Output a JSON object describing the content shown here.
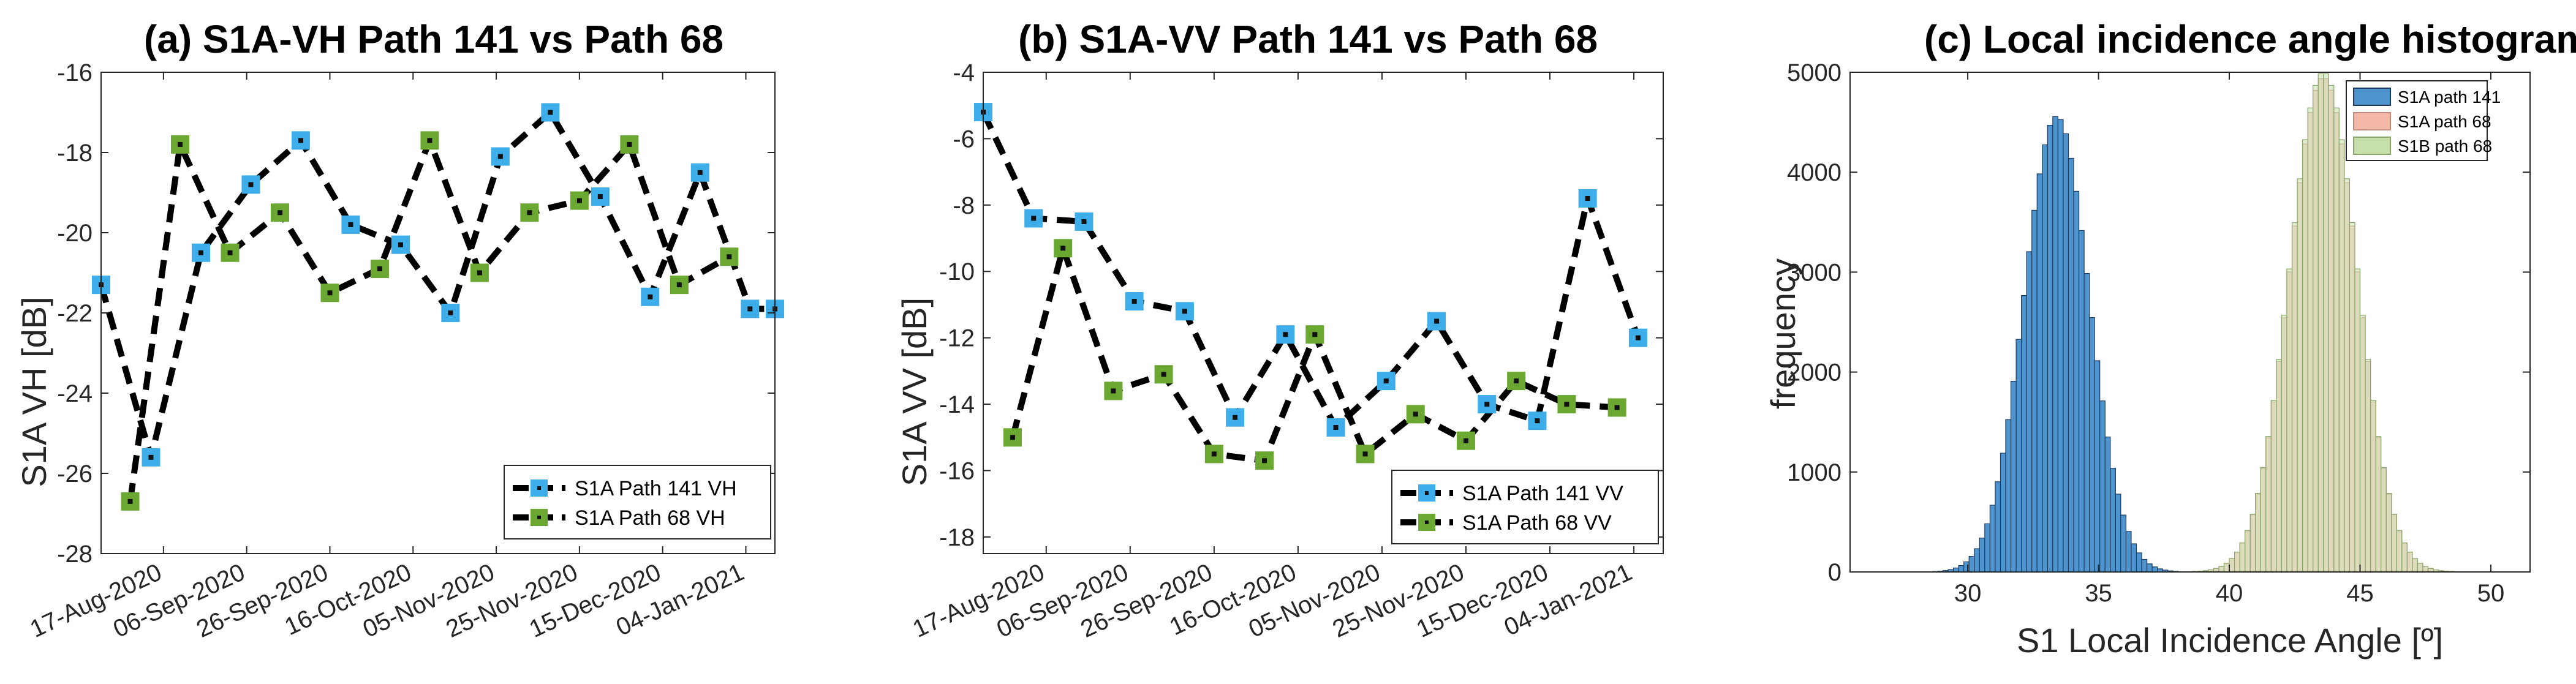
{
  "chart_data": [
    {
      "type": "line",
      "title": "(a) S1A-VH Path 141 vs Path 68",
      "xlabel": "",
      "ylabel": "S1A VH [dB]",
      "ylim": [
        -28,
        -16
      ],
      "yticks": [
        -28,
        -26,
        -24,
        -22,
        -20,
        -18,
        -16
      ],
      "ytick_labels": [
        "-28",
        "-26",
        "-24",
        "-22",
        "-20",
        "-18",
        "-16"
      ],
      "xrange": [
        "2020-08-02",
        "2021-01-11"
      ],
      "xtick_dates": [
        "2020-08-17",
        "2020-09-06",
        "2020-09-26",
        "2020-10-16",
        "2020-11-05",
        "2020-11-25",
        "2020-12-15",
        "2021-01-04"
      ],
      "xtick_labels": [
        "17-Aug-2020",
        "06-Sep-2020",
        "26-Sep-2020",
        "16-Oct-2020",
        "05-Nov-2020",
        "25-Nov-2020",
        "15-Dec-2020",
        "04-Jan-2021"
      ],
      "legend_position": "bottom-right",
      "series": [
        {
          "name": "S1A Path 141 VH",
          "color": "#3daee9",
          "x": [
            "2020-08-02",
            "2020-08-14",
            "2020-08-26",
            "2020-09-07",
            "2020-09-19",
            "2020-10-01",
            "2020-10-13",
            "2020-10-25",
            "2020-11-06",
            "2020-11-18",
            "2020-11-30",
            "2020-12-12",
            "2020-12-24",
            "2021-01-05",
            "2021-01-11"
          ],
          "values": [
            -21.3,
            -25.6,
            -20.5,
            -18.8,
            -17.7,
            -19.8,
            -20.3,
            -22.0,
            -18.1,
            -17.0,
            -19.1,
            -21.6,
            -18.5,
            -21.9,
            -21.9
          ]
        },
        {
          "name": "S1A Path 68 VH",
          "color": "#6aa832",
          "x": [
            "2020-08-09",
            "2020-08-21",
            "2020-09-02",
            "2020-09-14",
            "2020-09-26",
            "2020-10-08",
            "2020-10-20",
            "2020-11-01",
            "2020-11-13",
            "2020-11-25",
            "2020-12-07",
            "2020-12-19",
            "2020-12-31"
          ],
          "values": [
            -26.7,
            -17.8,
            -20.5,
            -19.5,
            -21.5,
            -20.9,
            -17.7,
            -21.0,
            -19.5,
            -19.2,
            -17.8,
            -21.3,
            -20.6
          ]
        }
      ]
    },
    {
      "type": "line",
      "title": "(b) S1A-VV Path 141 vs Path 68",
      "xlabel": "",
      "ylabel": "S1A VV [dB]",
      "ylim": [
        -18.5,
        -4
      ],
      "yticks": [
        -18,
        -16,
        -14,
        -12,
        -10,
        -8,
        -6,
        -4
      ],
      "ytick_labels": [
        "-18",
        "-16",
        "-14",
        "-12",
        "-10",
        "-8",
        "-6",
        "-4"
      ],
      "xrange": [
        "2020-08-02",
        "2021-01-11"
      ],
      "xtick_dates": [
        "2020-08-17",
        "2020-09-06",
        "2020-09-26",
        "2020-10-16",
        "2020-11-05",
        "2020-11-25",
        "2020-12-15",
        "2021-01-04"
      ],
      "xtick_labels": [
        "17-Aug-2020",
        "06-Sep-2020",
        "26-Sep-2020",
        "16-Oct-2020",
        "05-Nov-2020",
        "25-Nov-2020",
        "15-Dec-2020",
        "04-Jan-2021"
      ],
      "legend_position": "bottom-right",
      "series": [
        {
          "name": "S1A Path 141 VV",
          "color": "#3daee9",
          "x": [
            "2020-08-02",
            "2020-08-14",
            "2020-08-26",
            "2020-09-07",
            "2020-09-19",
            "2020-10-01",
            "2020-10-13",
            "2020-10-25",
            "2020-11-06",
            "2020-11-18",
            "2020-11-30",
            "2020-12-12",
            "2020-12-24",
            "2021-01-05"
          ],
          "values": [
            -5.2,
            -8.4,
            -8.5,
            -10.9,
            -11.2,
            -14.4,
            -11.9,
            -14.7,
            -13.3,
            -11.5,
            -14.0,
            -14.5,
            -7.8,
            -12.0
          ]
        },
        {
          "name": "S1A Path 68 VV",
          "color": "#6aa832",
          "x": [
            "2020-08-09",
            "2020-08-21",
            "2020-09-02",
            "2020-09-14",
            "2020-09-26",
            "2020-10-08",
            "2020-10-20",
            "2020-11-01",
            "2020-11-13",
            "2020-11-25",
            "2020-12-07",
            "2020-12-19",
            "2020-12-31"
          ],
          "values": [
            -15.0,
            -9.3,
            -13.6,
            -13.1,
            -15.5,
            -15.7,
            -11.9,
            -15.5,
            -14.3,
            -15.1,
            -13.3,
            -14.0,
            -14.1
          ]
        }
      ]
    },
    {
      "type": "histogram",
      "title": "(c) Local incidence angle histogram",
      "xlabel": "S1 Local Incidence Angle [º]",
      "ylabel": "frequency",
      "xlim": [
        25.5,
        51.5
      ],
      "ylim": [
        0,
        5000
      ],
      "xticks": [
        30,
        35,
        40,
        45,
        50
      ],
      "xtick_labels": [
        "30",
        "35",
        "40",
        "45",
        "50"
      ],
      "yticks": [
        0,
        1000,
        2000,
        3000,
        4000,
        5000
      ],
      "ytick_labels": [
        "0",
        "1000",
        "2000",
        "3000",
        "4000",
        "5000"
      ],
      "bin_width": 0.2,
      "legend_position": "top-right",
      "series": [
        {
          "name": "S1A path 141",
          "color": "#4e95cf",
          "edge": "#1d3a5c",
          "mean": 33.4,
          "std": 1.25,
          "peak": 4560
        },
        {
          "name": "S1A path 68",
          "color": "#f3b8a6",
          "edge": "#c48a78",
          "mean": 43.6,
          "std": 1.3,
          "peak": 4950
        },
        {
          "name": "S1B path 68",
          "color": "#c6dfab",
          "edge": "#8aa66a",
          "mean": 43.6,
          "std": 1.3,
          "peak": 5000
        }
      ]
    }
  ]
}
